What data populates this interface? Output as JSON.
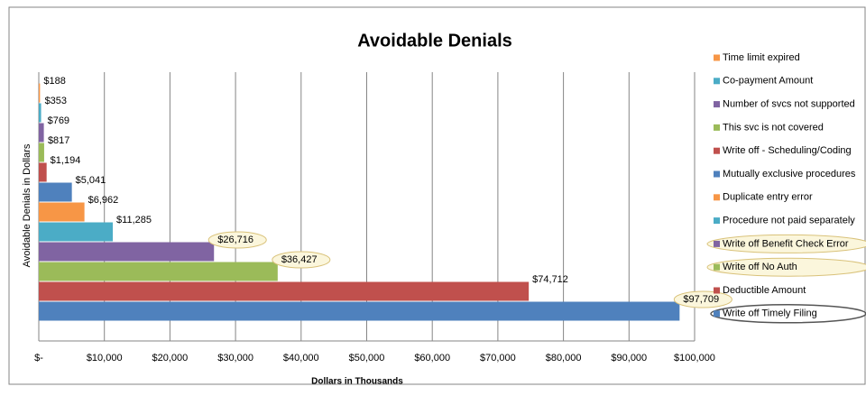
{
  "chart_data": {
    "type": "bar",
    "orientation": "horizontal",
    "title": "Avoidable Denials",
    "x_label": "Dollars in Thousands",
    "y_label": "Avoidable Denials in Dollars",
    "categories": [
      "Time limit expired",
      "Co-payment Amount",
      "Number of svcs not supported",
      "This svc is not covered",
      "Write off - Scheduling/Coding",
      "Mutually exclusive procedures",
      "Duplicate entry error",
      "Procedure not paid separately",
      "Write off Benefit Check Error",
      "Write off No Auth",
      "Deductible Amount",
      "Write off Timely Filing"
    ],
    "values": [
      188,
      353,
      769,
      817,
      1194,
      5041,
      6962,
      11285,
      26716,
      36427,
      74712,
      97709
    ],
    "value_labels": [
      "$188",
      "$353",
      "$769",
      "$817",
      "$1,194",
      "$5,041",
      "$6,962",
      "$11,285",
      "$26,716",
      "$36,427",
      "$74,712",
      "$97,709"
    ],
    "colors": [
      "#f79646",
      "#4bacc6",
      "#8064a2",
      "#9bbb59",
      "#c0504d",
      "#4f81bd",
      "#f79646",
      "#4bacc6",
      "#8064a2",
      "#9bbb59",
      "#c0504d",
      "#4f81bd"
    ],
    "xlim": [
      0,
      100000
    ],
    "xticks": [
      {
        "value": 0,
        "label": "$-"
      },
      {
        "value": 10000,
        "label": "$10,000"
      },
      {
        "value": 20000,
        "label": "$20,000"
      },
      {
        "value": 30000,
        "label": "$30,000"
      },
      {
        "value": 40000,
        "label": "$40,000"
      },
      {
        "value": 50000,
        "label": "$50,000"
      },
      {
        "value": 60000,
        "label": "$60,000"
      },
      {
        "value": 70000,
        "label": "$70,000"
      },
      {
        "value": 80000,
        "label": "$80,000"
      },
      {
        "value": 90000,
        "label": "$90,000"
      },
      {
        "value": 100000,
        "label": "$100,000"
      }
    ],
    "grid": true,
    "legend": "right"
  }
}
